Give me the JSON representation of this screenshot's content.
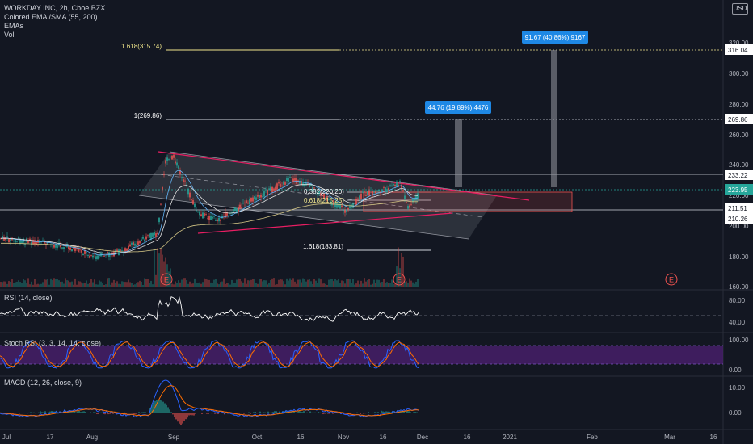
{
  "legend": {
    "symbol": "WORKDAY INC, 2h, Cboe BZX",
    "indicators": [
      "Colored EMA /SMA (55, 200)",
      "EMAs",
      "Vol"
    ]
  },
  "currency_button": "USD",
  "panes": {
    "rsi": "RSI (14, close)",
    "stoch": "Stoch RSI (3, 3, 14, 14, close)",
    "macd": "MACD (12, 26, close, 9)"
  },
  "time_axis": [
    "Jul",
    "17",
    "Aug",
    "Sep",
    "Oct",
    "16",
    "Nov",
    "16",
    "Dec",
    "16",
    "2021",
    "Feb",
    "Mar",
    "16"
  ],
  "price_axis": [
    "320.00",
    "300.00",
    "280.00",
    "260.00",
    "240.00",
    "220.00",
    "200.00",
    "180.00",
    "160.00"
  ],
  "rsi_axis": [
    "80.00",
    "40.00"
  ],
  "stoch_axis": [
    "100.00",
    "0.00"
  ],
  "macd_axis": [
    "10.00",
    "0.00"
  ],
  "price_labels": [
    {
      "text": "316.04",
      "color": "#ffffff"
    },
    {
      "text": "269.86",
      "color": "#ffffff"
    },
    {
      "text": "233.22",
      "color": "#ffffff"
    },
    {
      "text": "223.95",
      "color": "#26a69a"
    },
    {
      "text": "211.51",
      "color": "#ffffff"
    },
    {
      "text": "210.26",
      "color": "#ffffff"
    }
  ],
  "fib_labels": [
    "1.618(315.74)",
    "1(269.86)",
    "0.382(220.20)",
    "0.618(215.25)",
    "1.618(183.81)"
  ],
  "projection_labels": [
    "44.76 (19.89%) 4476",
    "91.67 (40.86%) 9167"
  ],
  "earnings_markers": [
    "E",
    "E",
    "E"
  ],
  "colors": {
    "background": "#131722",
    "bull": "#26a69a",
    "bear": "#ef5350",
    "channel": "#e91e63",
    "fib_1618": "#f0e68c",
    "projection": "#1e88e5",
    "stoch_band": "#4a1f6e"
  }
}
